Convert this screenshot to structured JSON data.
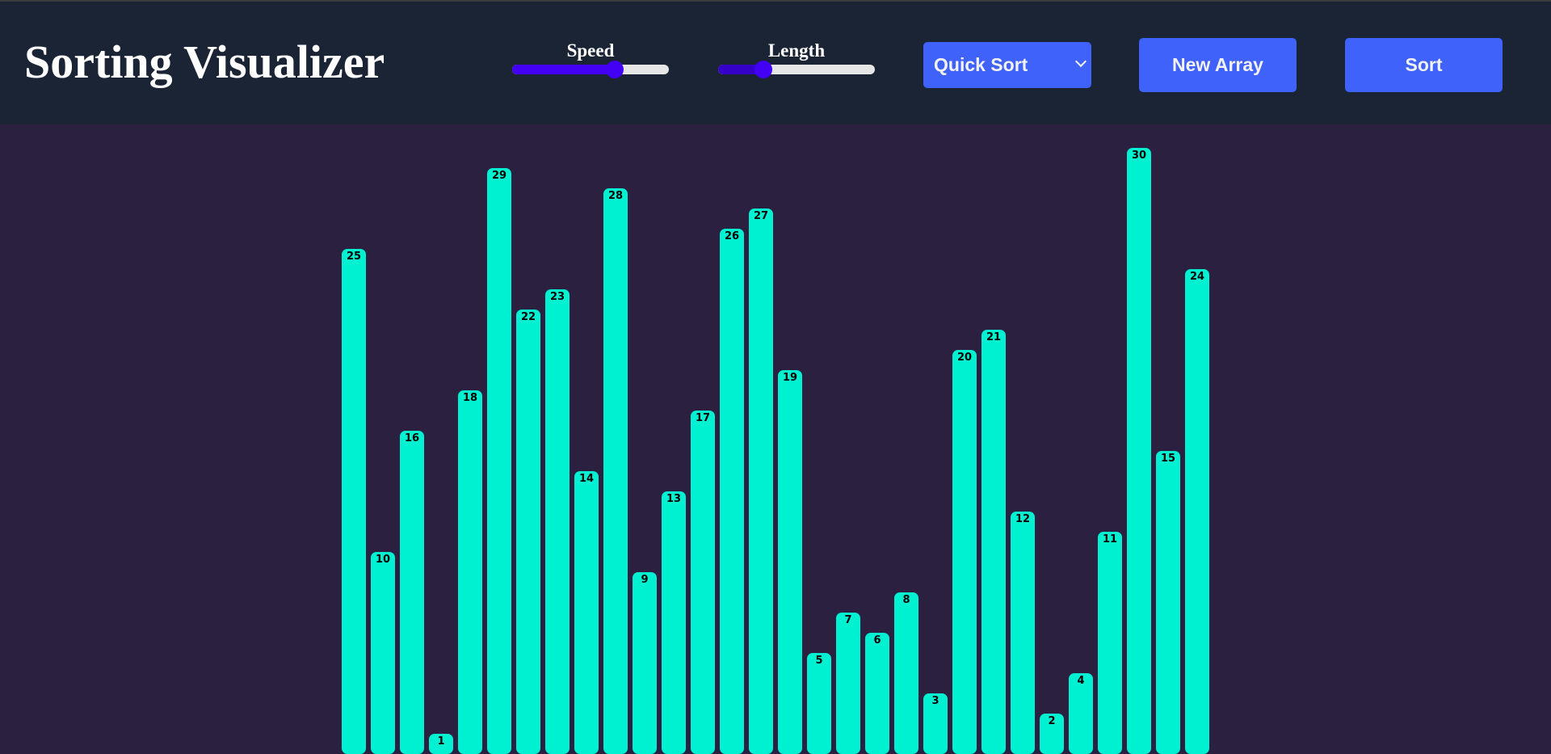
{
  "header": {
    "title": "Sorting Visualizer",
    "speed": {
      "label": "Speed",
      "value_percent": 66
    },
    "length": {
      "label": "Length",
      "value_percent": 26
    },
    "algorithm_select": {
      "selected": "Quick Sort"
    },
    "new_array_label": "New Array",
    "sort_label": "Sort"
  },
  "colors": {
    "header_bg": "#1b2435",
    "page_bg": "#2c2040",
    "bar": "#00f0d2",
    "button": "#3f62fb",
    "slider_thumb": "#4200f5"
  },
  "chart_data": {
    "type": "bar",
    "title": "",
    "xlabel": "",
    "ylabel": "",
    "categories": [
      "1",
      "2",
      "3",
      "4",
      "5",
      "6",
      "7",
      "8",
      "9",
      "10",
      "11",
      "12",
      "13",
      "14",
      "15",
      "16",
      "17",
      "18",
      "19",
      "20",
      "21",
      "22",
      "23",
      "24",
      "25",
      "26",
      "27",
      "28",
      "29",
      "30"
    ],
    "values": [
      25,
      10,
      16,
      1,
      18,
      29,
      22,
      23,
      14,
      28,
      9,
      13,
      17,
      26,
      27,
      19,
      5,
      7,
      6,
      8,
      3,
      20,
      21,
      12,
      2,
      4,
      11,
      30,
      15,
      24
    ],
    "ylim": [
      0,
      30
    ],
    "grid": false,
    "data_labels": true
  }
}
